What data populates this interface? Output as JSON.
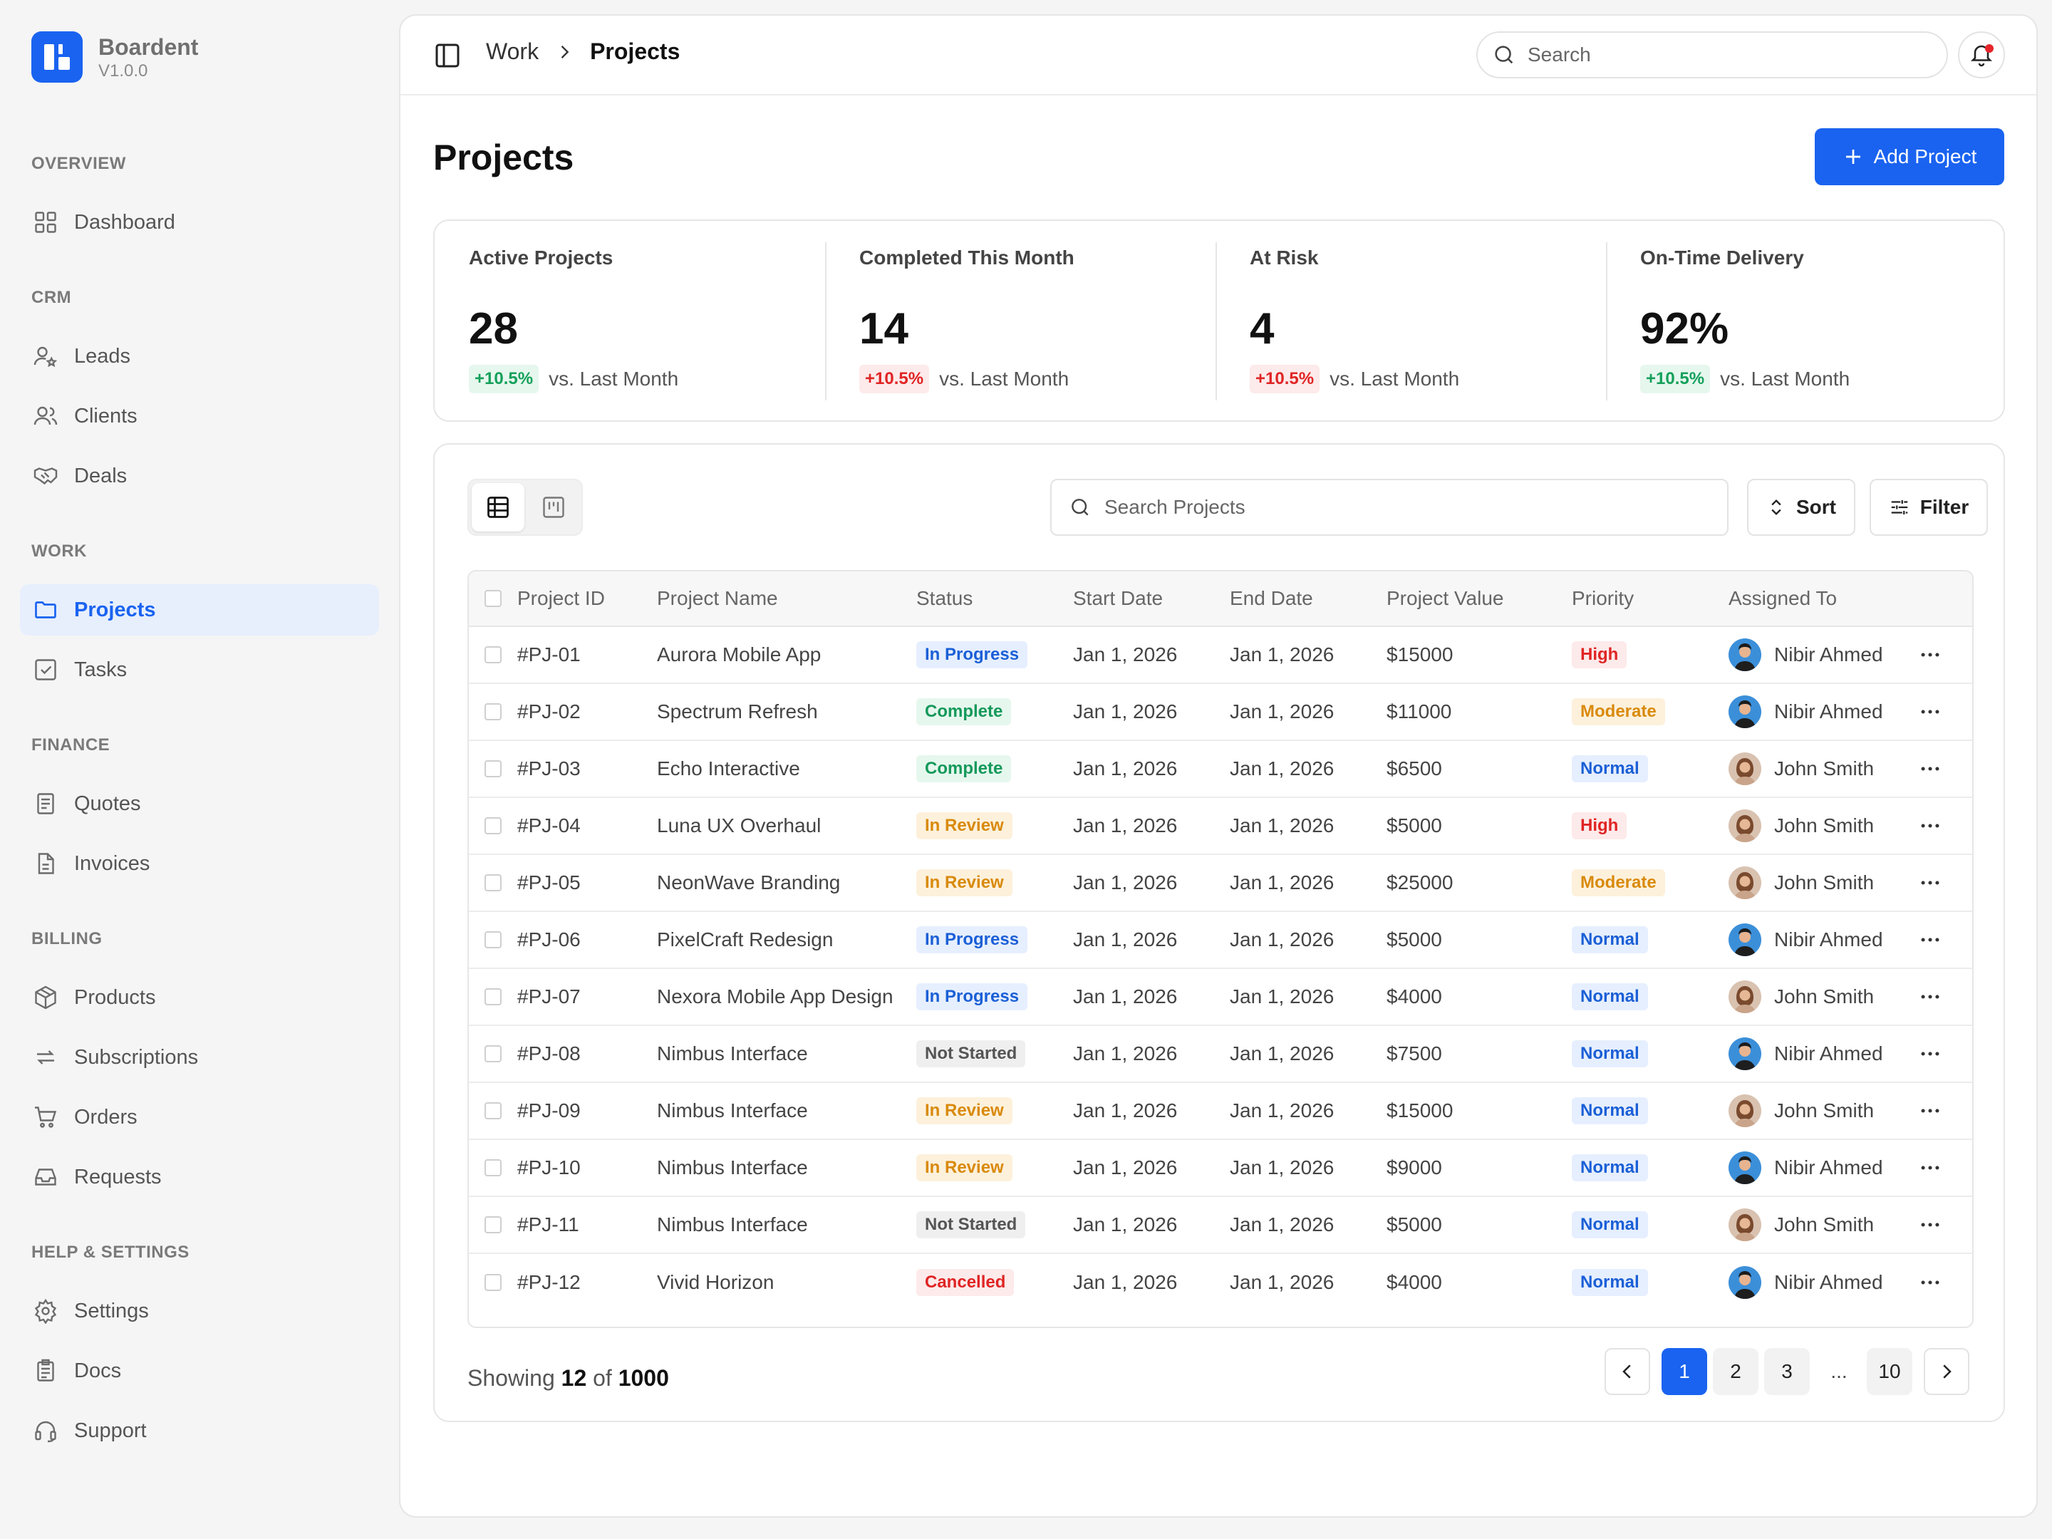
{
  "brand": {
    "name": "Boardent",
    "version": "V1.0.0"
  },
  "sidebar": {
    "sections": [
      {
        "title": "OVERVIEW",
        "items": [
          {
            "label": "Dashboard",
            "icon": "grid-icon"
          }
        ]
      },
      {
        "title": "CRM",
        "items": [
          {
            "label": "Leads",
            "icon": "user-star-icon"
          },
          {
            "label": "Clients",
            "icon": "users-icon"
          },
          {
            "label": "Deals",
            "icon": "handshake-icon"
          }
        ]
      },
      {
        "title": "WORK",
        "items": [
          {
            "label": "Projects",
            "icon": "folder-icon",
            "active": true
          },
          {
            "label": "Tasks",
            "icon": "checkbox-icon"
          }
        ]
      },
      {
        "title": "FINANCE",
        "items": [
          {
            "label": "Quotes",
            "icon": "receipt-icon"
          },
          {
            "label": "Invoices",
            "icon": "document-icon"
          }
        ]
      },
      {
        "title": "BILLING",
        "items": [
          {
            "label": "Products",
            "icon": "box-icon"
          },
          {
            "label": "Subscriptions",
            "icon": "repeat-icon"
          },
          {
            "label": "Orders",
            "icon": "cart-icon"
          },
          {
            "label": "Requests",
            "icon": "inbox-icon"
          }
        ]
      },
      {
        "title": "HELP & SETTINGS",
        "items": [
          {
            "label": "Settings",
            "icon": "gear-icon"
          },
          {
            "label": "Docs",
            "icon": "clipboard-icon"
          },
          {
            "label": "Support",
            "icon": "headset-icon"
          }
        ]
      }
    ]
  },
  "topbar": {
    "breadcrumb": {
      "parent": "Work",
      "current": "Projects"
    },
    "search_placeholder": "Search"
  },
  "page": {
    "title": "Projects",
    "add_label": "Add Project"
  },
  "stats": [
    {
      "title": "Active Projects",
      "value": "28",
      "change": "+10.5%",
      "trend": "positive",
      "compare": "vs. Last Month"
    },
    {
      "title": "Completed This Month",
      "value": "14",
      "change": "+10.5%",
      "trend": "negative",
      "compare": "vs. Last Month"
    },
    {
      "title": "At Risk",
      "value": "4",
      "change": "+10.5%",
      "trend": "negative",
      "compare": "vs. Last Month"
    },
    {
      "title": "On-Time Delivery",
      "value": "92%",
      "change": "+10.5%",
      "trend": "positive",
      "compare": "vs. Last Month"
    }
  ],
  "toolbar": {
    "search_placeholder": "Search Projects",
    "sort_label": "Sort",
    "filter_label": "Filter"
  },
  "table": {
    "columns": [
      "Project ID",
      "Project Name",
      "Status",
      "Start Date",
      "End Date",
      "Project Value",
      "Priority",
      "Assigned To"
    ],
    "rows": [
      {
        "id": "#PJ-01",
        "name": "Aurora Mobile App",
        "status": "In Progress",
        "start": "Jan 1, 2026",
        "end": "Jan 1, 2026",
        "value": "$15000",
        "priority": "High",
        "assignee": "Nibir Ahmed"
      },
      {
        "id": "#PJ-02",
        "name": "Spectrum Refresh",
        "status": "Complete",
        "start": "Jan 1, 2026",
        "end": "Jan 1, 2026",
        "value": "$11000",
        "priority": "Moderate",
        "assignee": "Nibir Ahmed"
      },
      {
        "id": "#PJ-03",
        "name": "Echo Interactive",
        "status": "Complete",
        "start": "Jan 1, 2026",
        "end": "Jan 1, 2026",
        "value": "$6500",
        "priority": "Normal",
        "assignee": "John Smith"
      },
      {
        "id": "#PJ-04",
        "name": "Luna UX Overhaul",
        "status": "In Review",
        "start": "Jan 1, 2026",
        "end": "Jan 1, 2026",
        "value": "$5000",
        "priority": "High",
        "assignee": "John Smith"
      },
      {
        "id": "#PJ-05",
        "name": "NeonWave Branding",
        "status": "In Review",
        "start": "Jan 1, 2026",
        "end": "Jan 1, 2026",
        "value": "$25000",
        "priority": "Moderate",
        "assignee": "John Smith"
      },
      {
        "id": "#PJ-06",
        "name": "PixelCraft Redesign",
        "status": "In Progress",
        "start": "Jan 1, 2026",
        "end": "Jan 1, 2026",
        "value": "$5000",
        "priority": "Normal",
        "assignee": "Nibir Ahmed"
      },
      {
        "id": "#PJ-07",
        "name": "Nexora Mobile App Design",
        "status": "In Progress",
        "start": "Jan 1, 2026",
        "end": "Jan 1, 2026",
        "value": "$4000",
        "priority": "Normal",
        "assignee": "John Smith"
      },
      {
        "id": "#PJ-08",
        "name": "Nimbus Interface",
        "status": "Not Started",
        "start": "Jan 1, 2026",
        "end": "Jan 1, 2026",
        "value": "$7500",
        "priority": "Normal",
        "assignee": "Nibir Ahmed"
      },
      {
        "id": "#PJ-09",
        "name": "Nimbus Interface",
        "status": "In Review",
        "start": "Jan 1, 2026",
        "end": "Jan 1, 2026",
        "value": "$15000",
        "priority": "Normal",
        "assignee": "John Smith"
      },
      {
        "id": "#PJ-10",
        "name": "Nimbus Interface",
        "status": "In Review",
        "start": "Jan 1, 2026",
        "end": "Jan 1, 2026",
        "value": "$9000",
        "priority": "Normal",
        "assignee": "Nibir Ahmed"
      },
      {
        "id": "#PJ-11",
        "name": "Nimbus Interface",
        "status": "Not Started",
        "start": "Jan 1, 2026",
        "end": "Jan 1, 2026",
        "value": "$5000",
        "priority": "Normal",
        "assignee": "John Smith"
      },
      {
        "id": "#PJ-12",
        "name": "Vivid Horizon",
        "status": "Cancelled",
        "start": "Jan 1, 2026",
        "end": "Jan 1, 2026",
        "value": "$4000",
        "priority": "Normal",
        "assignee": "Nibir Ahmed"
      }
    ]
  },
  "footer": {
    "showing_prefix": "Showing",
    "showing_count": "12",
    "showing_of": "of",
    "showing_total": "1000",
    "pages": [
      "1",
      "2",
      "3",
      "...",
      "10"
    ],
    "current_page": "1"
  },
  "colors": {
    "accent": "#1a63f0",
    "status": {
      "In Progress": {
        "bg": "#e6efff",
        "fg": "#1a5fd6"
      },
      "Complete": {
        "bg": "#e6f7ee",
        "fg": "#14995a"
      },
      "In Review": {
        "bg": "#fdf1dc",
        "fg": "#d98a0b"
      },
      "Not Started": {
        "bg": "#efefef",
        "fg": "#555555"
      },
      "Cancelled": {
        "bg": "#fdeaea",
        "fg": "#e02424"
      }
    },
    "priority": {
      "High": {
        "bg": "#fdeaea",
        "fg": "#e02424"
      },
      "Moderate": {
        "bg": "#fdf1dc",
        "fg": "#d98a0b"
      },
      "Normal": {
        "bg": "#e6efff",
        "fg": "#1a5fd6"
      }
    }
  }
}
